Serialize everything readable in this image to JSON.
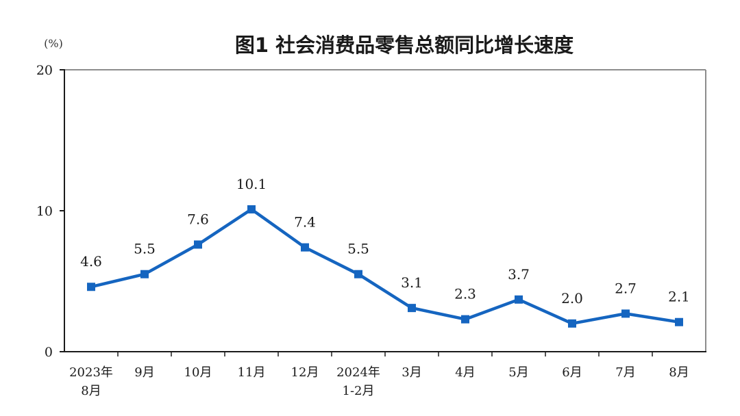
{
  "chart_data": {
    "type": "line",
    "title": "图1 社会消费品零售总额同比增长速度",
    "unit": "(%)",
    "xlabel": "",
    "ylabel": "",
    "ylim": [
      0,
      20
    ],
    "yticks": [
      "0",
      "10",
      "20"
    ],
    "grid": false,
    "categories": [
      [
        "2023年",
        "8月"
      ],
      [
        "9月"
      ],
      [
        "10月"
      ],
      [
        "11月"
      ],
      [
        "12月"
      ],
      [
        "2024年",
        "1-2月"
      ],
      [
        "3月"
      ],
      [
        "4月"
      ],
      [
        "5月"
      ],
      [
        "6月"
      ],
      [
        "7月"
      ],
      [
        "8月"
      ]
    ],
    "series": [
      {
        "values": [
          4.6,
          5.5,
          7.6,
          10.1,
          7.4,
          5.5,
          3.1,
          2.3,
          3.7,
          2.0,
          2.7,
          2.1
        ],
        "labels": [
          "4.6",
          "5.5",
          "7.6",
          "10.1",
          "7.4",
          "5.5",
          "3.1",
          "2.3",
          "3.7",
          "2.0",
          "2.7",
          "2.1"
        ]
      }
    ],
    "colors": {
      "line": "#1565c0",
      "axis": "#1a1a1a",
      "frame": "#8c8c8c"
    }
  }
}
